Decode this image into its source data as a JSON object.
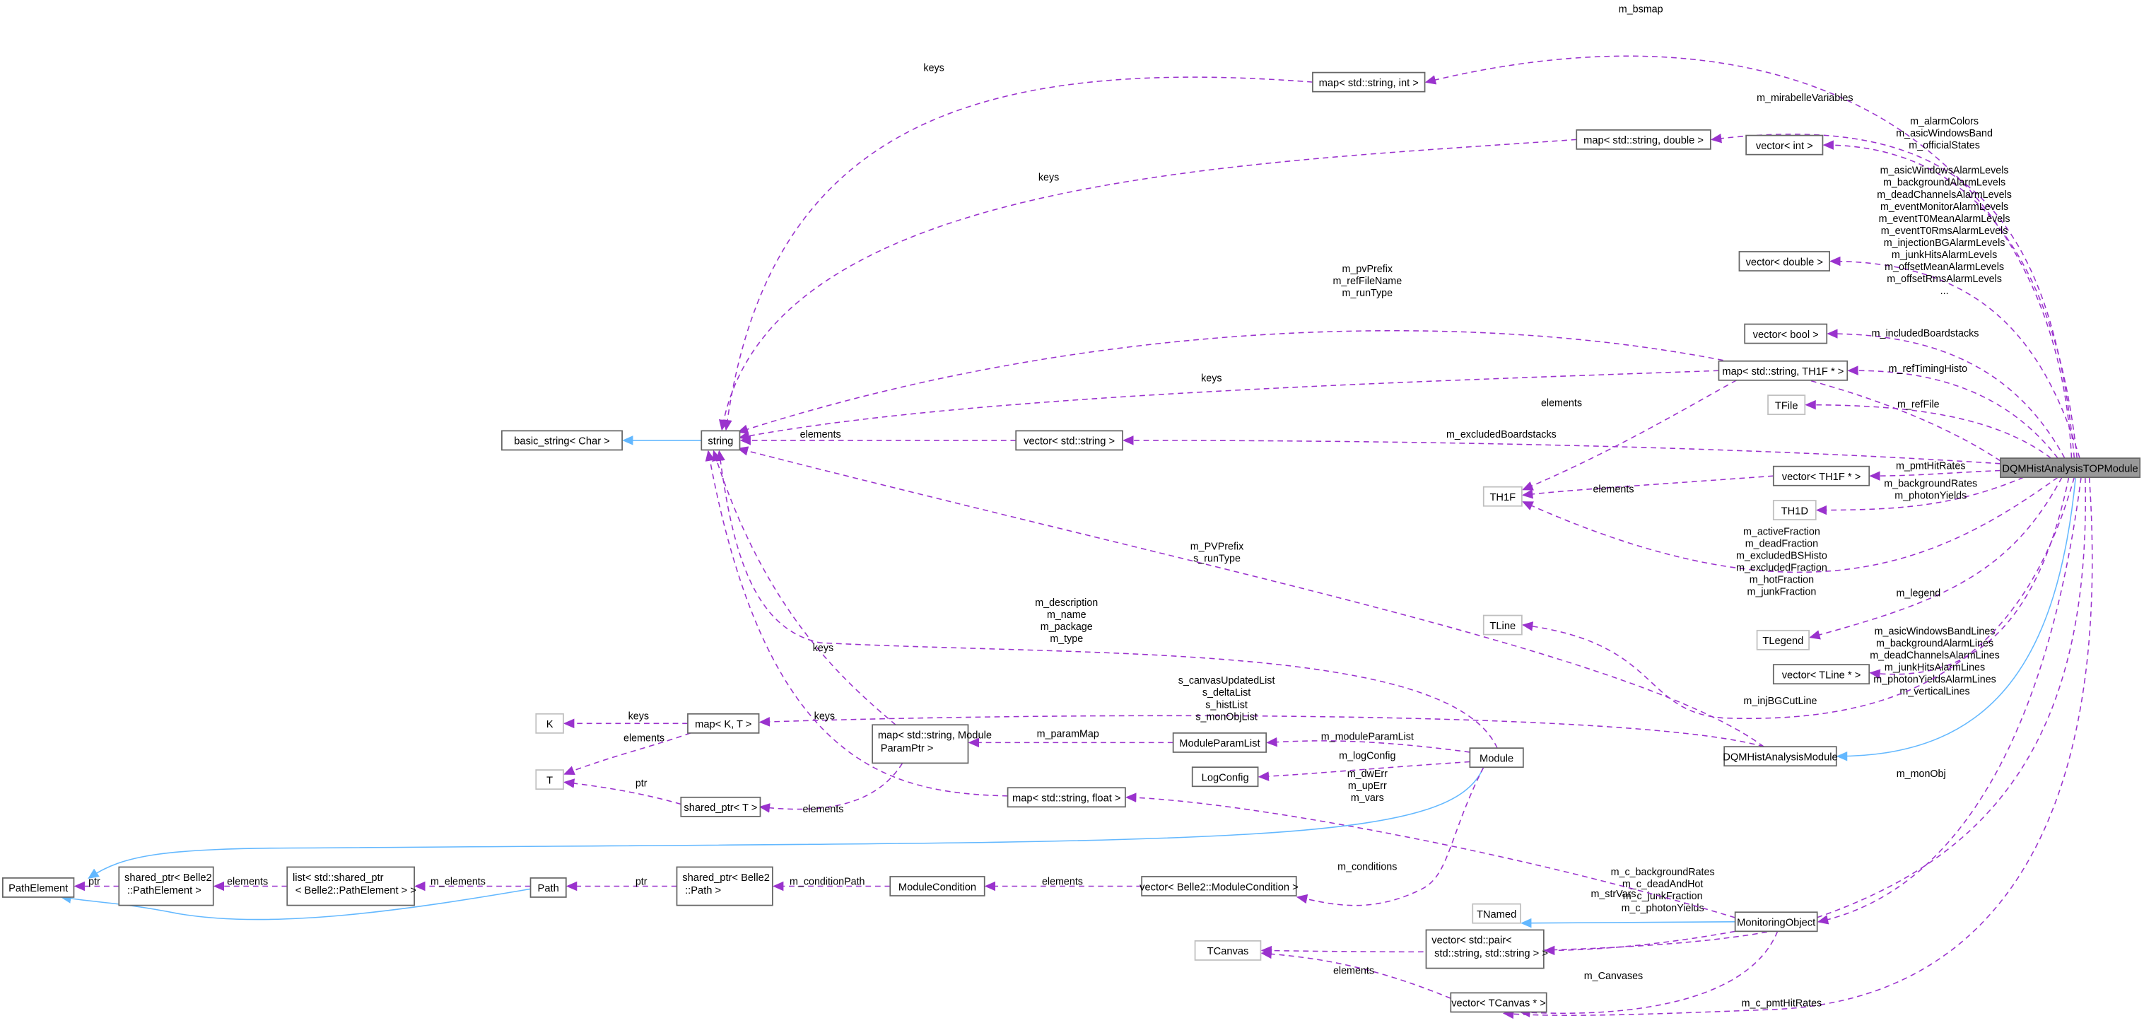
{
  "colors": {
    "usage_edge": "#9a32cd",
    "inheritance_edge": "#63b8ff",
    "focus_node_fill": "#999999",
    "node_border": "#666666",
    "external_node_border": "#bfbfbf"
  },
  "nodes": [
    {
      "id": "top",
      "lines": [
        "DQMHistAnalysisTOPModule"
      ],
      "style": "focus"
    },
    {
      "id": "map_str_int",
      "lines": [
        "map< std::string, int >"
      ],
      "style": "normal"
    },
    {
      "id": "map_str_double",
      "lines": [
        "map< std::string, double >"
      ],
      "style": "normal"
    },
    {
      "id": "vec_int",
      "lines": [
        "vector< int >"
      ],
      "style": "normal"
    },
    {
      "id": "vec_double",
      "lines": [
        "vector< double >"
      ],
      "style": "normal"
    },
    {
      "id": "vec_bool",
      "lines": [
        "vector< bool >"
      ],
      "style": "normal"
    },
    {
      "id": "map_str_th1f",
      "lines": [
        "map< std::string, TH1F * >"
      ],
      "style": "normal"
    },
    {
      "id": "tfile",
      "lines": [
        "TFile"
      ],
      "style": "external"
    },
    {
      "id": "vec_string",
      "lines": [
        "vector< std::string >"
      ],
      "style": "normal"
    },
    {
      "id": "basic_string",
      "lines": [
        "basic_string< Char >"
      ],
      "style": "normal"
    },
    {
      "id": "string",
      "lines": [
        "string"
      ],
      "style": "normal"
    },
    {
      "id": "th1f",
      "lines": [
        "TH1F"
      ],
      "style": "external"
    },
    {
      "id": "vec_th1f",
      "lines": [
        "vector< TH1F * >"
      ],
      "style": "normal"
    },
    {
      "id": "th1d",
      "lines": [
        "TH1D"
      ],
      "style": "external"
    },
    {
      "id": "tline",
      "lines": [
        "TLine"
      ],
      "style": "external"
    },
    {
      "id": "tlegend",
      "lines": [
        "TLegend"
      ],
      "style": "external"
    },
    {
      "id": "vec_tline",
      "lines": [
        "vector< TLine * >"
      ],
      "style": "normal"
    },
    {
      "id": "dqm_module",
      "lines": [
        "DQMHistAnalysisModule"
      ],
      "style": "normal"
    },
    {
      "id": "module",
      "lines": [
        "Module"
      ],
      "style": "normal"
    },
    {
      "id": "k",
      "lines": [
        "K"
      ],
      "style": "external"
    },
    {
      "id": "t",
      "lines": [
        "T"
      ],
      "style": "external"
    },
    {
      "id": "map_k_t",
      "lines": [
        "map< K, T >"
      ],
      "style": "normal"
    },
    {
      "id": "map_str_param",
      "lines": [
        "map< std::string, Module",
        "ParamPtr >"
      ],
      "style": "normal"
    },
    {
      "id": "module_param_list",
      "lines": [
        "ModuleParamList"
      ],
      "style": "normal"
    },
    {
      "id": "log_config",
      "lines": [
        "LogConfig"
      ],
      "style": "normal"
    },
    {
      "id": "shared_ptr_t",
      "lines": [
        "shared_ptr< T >"
      ],
      "style": "normal"
    },
    {
      "id": "map_str_float",
      "lines": [
        "map< std::string, float >"
      ],
      "style": "normal"
    },
    {
      "id": "path_element",
      "lines": [
        "PathElement"
      ],
      "style": "normal"
    },
    {
      "id": "shared_ptr_pe",
      "lines": [
        "shared_ptr< Belle2",
        "::PathElement >"
      ],
      "style": "normal"
    },
    {
      "id": "list_pe",
      "lines": [
        "list< std::shared_ptr",
        "< Belle2::PathElement > >"
      ],
      "style": "normal"
    },
    {
      "id": "path",
      "lines": [
        "Path"
      ],
      "style": "normal"
    },
    {
      "id": "shared_ptr_path",
      "lines": [
        "shared_ptr< Belle2",
        "::Path >"
      ],
      "style": "normal"
    },
    {
      "id": "module_condition",
      "lines": [
        "ModuleCondition"
      ],
      "style": "normal"
    },
    {
      "id": "vec_module_condition",
      "lines": [
        "vector< Belle2::ModuleCondition >"
      ],
      "style": "normal"
    },
    {
      "id": "tnamed",
      "lines": [
        "TNamed"
      ],
      "style": "external"
    },
    {
      "id": "monitoring_object",
      "lines": [
        "MonitoringObject"
      ],
      "style": "normal"
    },
    {
      "id": "vec_pair",
      "lines": [
        "vector< std::pair<",
        "std::string, std::string > >"
      ],
      "style": "normal"
    },
    {
      "id": "tcanvas",
      "lines": [
        "TCanvas"
      ],
      "style": "external"
    },
    {
      "id": "vec_tcanvas",
      "lines": [
        "vector< TCanvas * >"
      ],
      "style": "normal"
    }
  ],
  "edges": [
    {
      "from": "top",
      "to": "map_str_int",
      "type": "usage",
      "label": [
        "m_bsmap"
      ]
    },
    {
      "from": "top",
      "to": "map_str_double",
      "type": "usage",
      "label": [
        "m_mirabelleVariables"
      ]
    },
    {
      "from": "top",
      "to": "vec_int",
      "type": "usage",
      "label": [
        "m_alarmColors",
        "m_asicWindowsBand",
        "m_officialStates"
      ]
    },
    {
      "from": "top",
      "to": "vec_double",
      "type": "usage",
      "label": [
        "m_asicWindowsAlarmLevels",
        "m_backgroundAlarmLevels",
        "m_deadChannelsAlarmLevels",
        "m_eventMonitorAlarmLevels",
        "m_eventT0MeanAlarmLevels",
        "m_eventT0RmsAlarmLevels",
        "m_injectionBGAlarmLevels",
        "m_junkHitsAlarmLevels",
        "m_offsetMeanAlarmLevels",
        "m_offsetRmsAlarmLevels",
        "..."
      ]
    },
    {
      "from": "top",
      "to": "string",
      "type": "usage",
      "label": [
        "m_pvPrefix",
        "m_refFileName",
        "m_runType"
      ]
    },
    {
      "from": "top",
      "to": "vec_bool",
      "type": "usage",
      "label": [
        "m_includedBoardstacks"
      ]
    },
    {
      "from": "top",
      "to": "map_str_th1f",
      "type": "usage",
      "label": [
        "m_refTimingHisto"
      ]
    },
    {
      "from": "top",
      "to": "tfile",
      "type": "usage",
      "label": [
        "m_refFile"
      ]
    },
    {
      "from": "top",
      "to": "vec_string",
      "type": "usage",
      "label": [
        "m_excludedBoardstacks"
      ]
    },
    {
      "from": "top",
      "to": "vec_th1f",
      "type": "usage",
      "label": [
        "m_pmtHitRates"
      ]
    },
    {
      "from": "top",
      "to": "th1d",
      "type": "usage",
      "label": [
        "m_backgroundRates",
        "m_photonYields"
      ]
    },
    {
      "from": "top",
      "to": "th1f",
      "type": "usage",
      "label": [
        "m_activeFraction",
        "m_deadFraction",
        "m_excludedBSHisto",
        "m_excludedFraction",
        "m_hotFraction",
        "m_junkFraction"
      ]
    },
    {
      "from": "top",
      "to": "tlegend",
      "type": "usage",
      "label": [
        "m_legend"
      ]
    },
    {
      "from": "top",
      "to": "vec_tline",
      "type": "usage",
      "label": [
        "m_asicWindowsBandLines",
        "m_backgroundAlarmLines",
        "m_deadChannelsAlarmLines",
        "m_junkHitsAlarmLines",
        "m_photonYieldsAlarmLines",
        "m_verticalLines"
      ]
    },
    {
      "from": "top",
      "to": "tline",
      "type": "usage",
      "label": [
        "m_injBGCutLine"
      ]
    },
    {
      "from": "top",
      "to": "dqm_module",
      "type": "inheritance",
      "label": []
    },
    {
      "from": "top",
      "to": "monitoring_object",
      "type": "usage",
      "label": [
        "m_monObj"
      ]
    },
    {
      "from": "top",
      "to": "tcanvas",
      "type": "usage",
      "label": [
        "m_c_backgroundRates",
        "m_c_deadAndHot",
        "m_c_junkFraction",
        "m_c_photonYields"
      ]
    },
    {
      "from": "top",
      "to": "vec_tcanvas",
      "type": "usage",
      "label": [
        "m_c_pmtHitRates"
      ]
    },
    {
      "from": "map_str_th1f",
      "to": "string",
      "type": "usage",
      "label": [
        "keys"
      ]
    },
    {
      "from": "map_str_th1f",
      "to": "th1f",
      "type": "usage",
      "label": [
        "elements"
      ]
    },
    {
      "from": "vec_th1f",
      "to": "th1f",
      "type": "usage",
      "label": [
        "elements"
      ]
    },
    {
      "from": "map_str_int",
      "to": "string",
      "type": "usage",
      "label": [
        "keys"
      ]
    },
    {
      "from": "map_str_double",
      "to": "string",
      "type": "usage",
      "label": [
        "keys"
      ]
    },
    {
      "from": "vec_string",
      "to": "string",
      "type": "usage",
      "label": [
        "elements"
      ]
    },
    {
      "from": "string",
      "to": "basic_string",
      "type": "inheritance",
      "label": []
    },
    {
      "from": "dqm_module",
      "to": "string",
      "type": "usage",
      "label": [
        "m_PVPrefix",
        "s_runType"
      ]
    },
    {
      "from": "module",
      "to": "string",
      "type": "usage",
      "label": [
        "m_description",
        "m_name",
        "m_package",
        "m_type"
      ]
    },
    {
      "from": "dqm_module",
      "to": "map_k_t",
      "type": "usage",
      "label": [
        "s_canvasUpdatedList",
        "s_deltaList",
        "s_histList",
        "s_monObjList"
      ]
    },
    {
      "from": "map_k_t",
      "to": "k",
      "type": "usage",
      "label": [
        "keys"
      ]
    },
    {
      "from": "map_k_t",
      "to": "t",
      "type": "usage",
      "label": [
        "elements"
      ]
    },
    {
      "from": "shared_ptr_t",
      "to": "t",
      "type": "usage",
      "label": [
        "ptr"
      ]
    },
    {
      "from": "map_str_param",
      "to": "string",
      "type": "usage",
      "label": [
        "keys"
      ]
    },
    {
      "from": "map_str_float",
      "to": "string",
      "type": "usage",
      "label": [
        "keys"
      ]
    },
    {
      "from": "map_str_param",
      "to": "shared_ptr_t",
      "type": "usage",
      "label": [
        "elements"
      ]
    },
    {
      "from": "module_param_list",
      "to": "map_str_param",
      "type": "usage",
      "label": [
        "m_paramMap"
      ]
    },
    {
      "from": "module",
      "to": "module_param_list",
      "type": "usage",
      "label": [
        "m_moduleParamList"
      ]
    },
    {
      "from": "module",
      "to": "log_config",
      "type": "usage",
      "label": [
        "m_logConfig"
      ]
    },
    {
      "from": "monitoring_object",
      "to": "map_str_float",
      "type": "usage",
      "label": [
        "m_dwErr",
        "m_upErr",
        "m_vars"
      ]
    },
    {
      "from": "module",
      "to": "path_element",
      "type": "inheritance",
      "label": []
    },
    {
      "from": "path",
      "to": "path_element",
      "type": "inheritance",
      "label": []
    },
    {
      "from": "shared_ptr_pe",
      "to": "path_element",
      "type": "usage",
      "label": [
        "ptr"
      ]
    },
    {
      "from": "list_pe",
      "to": "shared_ptr_pe",
      "type": "usage",
      "label": [
        "elements"
      ]
    },
    {
      "from": "path",
      "to": "list_pe",
      "type": "usage",
      "label": [
        "m_elements"
      ]
    },
    {
      "from": "shared_ptr_path",
      "to": "path",
      "type": "usage",
      "label": [
        "ptr"
      ]
    },
    {
      "from": "module_condition",
      "to": "shared_ptr_path",
      "type": "usage",
      "label": [
        "m_conditionPath"
      ]
    },
    {
      "from": "vec_module_condition",
      "to": "module_condition",
      "type": "usage",
      "label": [
        "elements"
      ]
    },
    {
      "from": "module",
      "to": "vec_module_condition",
      "type": "usage",
      "label": [
        "m_conditions"
      ]
    },
    {
      "from": "monitoring_object",
      "to": "tnamed",
      "type": "inheritance",
      "label": []
    },
    {
      "from": "monitoring_object",
      "to": "vec_pair",
      "type": "usage",
      "label": [
        "m_strVars"
      ]
    },
    {
      "from": "monitoring_object",
      "to": "vec_tcanvas",
      "type": "usage",
      "label": [
        "m_Canvases"
      ]
    },
    {
      "from": "vec_tcanvas",
      "to": "tcanvas",
      "type": "usage",
      "label": [
        "elements"
      ]
    }
  ]
}
